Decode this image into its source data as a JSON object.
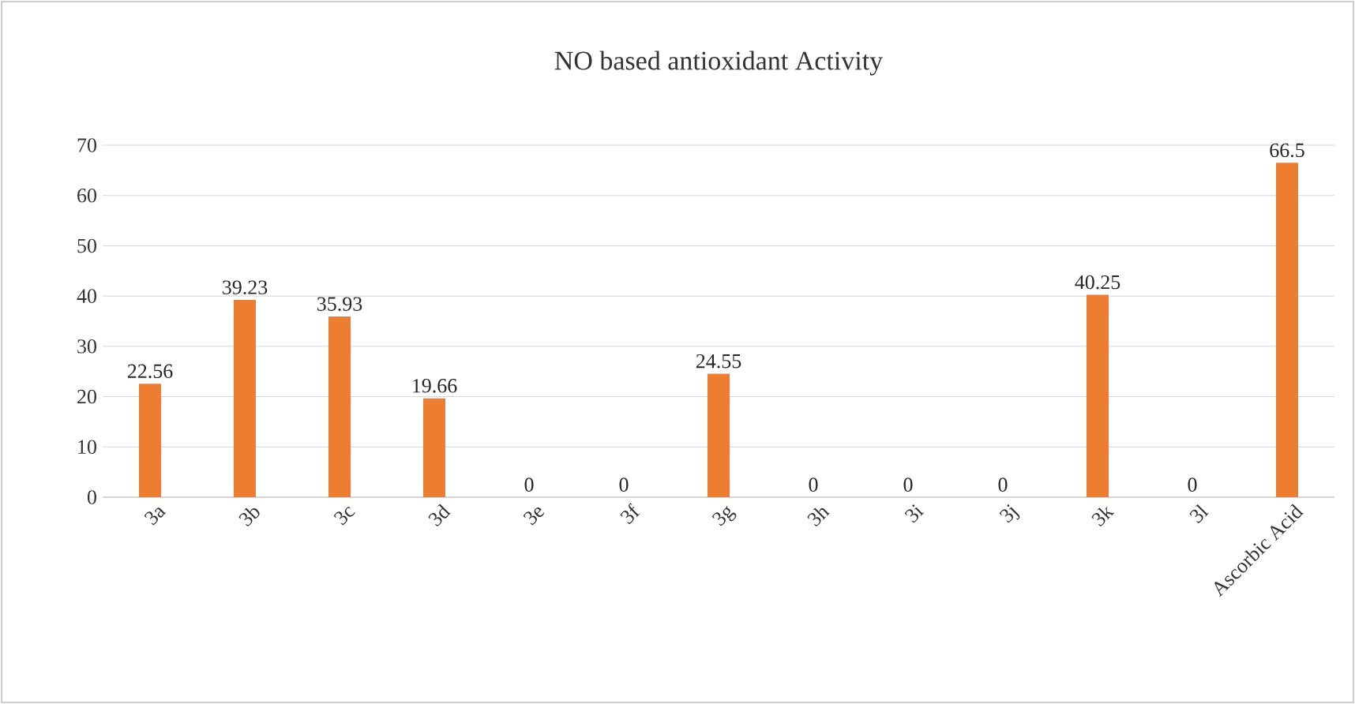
{
  "chart_data": {
    "type": "bar",
    "title": "NO based antioxidant Activity",
    "categories": [
      "3a",
      "3b",
      "3c",
      "3d",
      "3e",
      "3f",
      "3g",
      "3h",
      "3i",
      "3j",
      "3k",
      "3l",
      "Ascorbic Acid"
    ],
    "values": [
      22.56,
      39.23,
      35.93,
      19.66,
      0,
      0,
      24.55,
      0,
      0,
      0,
      40.25,
      0,
      66.5
    ],
    "color": "#ed7d31",
    "ylim": [
      0,
      70
    ],
    "yticks": [
      0,
      10,
      20,
      30,
      40,
      50,
      60,
      70
    ],
    "grid": "y",
    "data_labels": true
  }
}
